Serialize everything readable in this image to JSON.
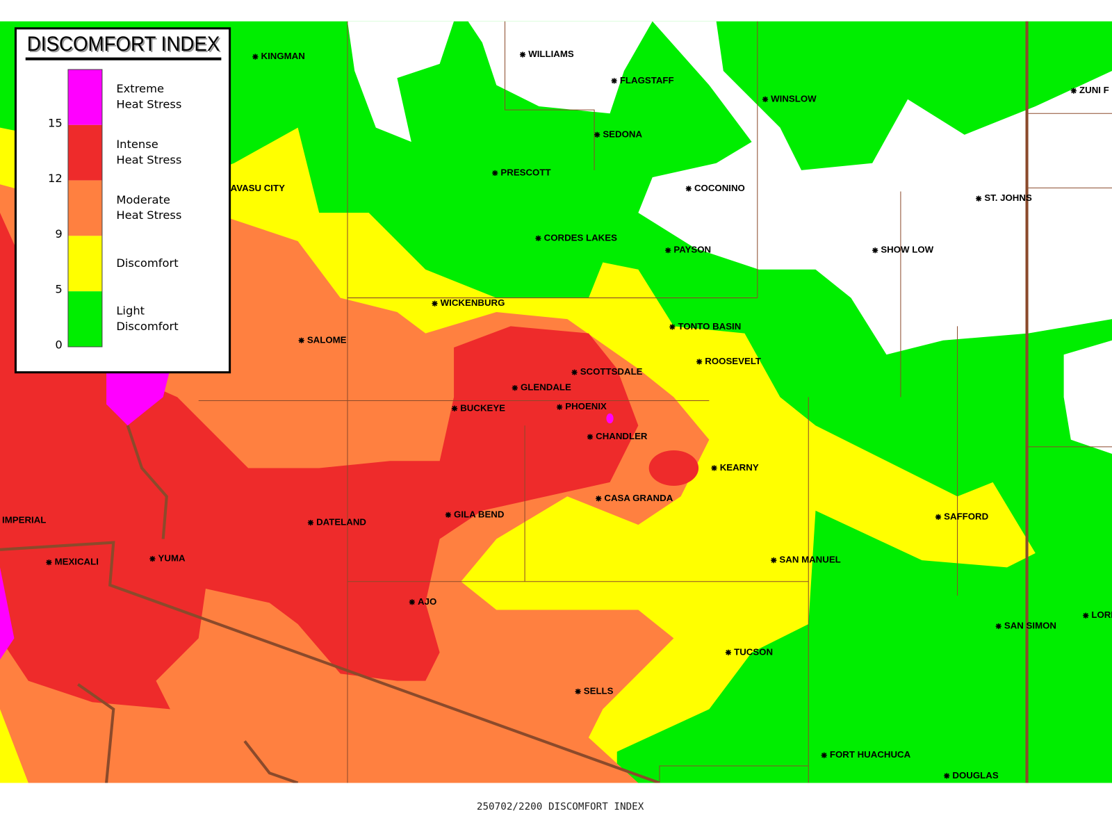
{
  "legend": {
    "title": "DISCOMFORT INDEX",
    "items": [
      {
        "lines": [
          "Extreme",
          "Heat Stress"
        ],
        "color": "#ff00ff"
      },
      {
        "lines": [
          "Intense",
          "Heat Stress"
        ],
        "color": "#ee2b2b"
      },
      {
        "lines": [
          "Moderate",
          "Heat Stress"
        ],
        "color": "#ff8040"
      },
      {
        "lines": [
          "Discomfort"
        ],
        "color": "#ffff00"
      },
      {
        "lines": [
          "Light",
          "Discomfort"
        ],
        "color": "#00ee00"
      }
    ],
    "thresholds": [
      15,
      12,
      9,
      5,
      0
    ]
  },
  "cities": [
    "KINGMAN",
    "WILLIAMS",
    "FLAGSTAFF",
    "WINSLOW",
    "ZUNI F",
    "SEDONA",
    "PRESCOTT",
    "COCONINO",
    "ST. JOHNS",
    "AVASU CITY",
    "CORDES LAKES",
    "PAYSON",
    "SHOW LOW",
    "WICKENBURG",
    "SALOME",
    "TONTO BASIN",
    "ROOSEVELT",
    "SCOTTSDALE",
    "GLENDALE",
    "BUCKEYE",
    "PHOENIX",
    "CHANDLER",
    "KEARNY",
    "CASA GRANDA",
    "SAFFORD",
    "IMPERIAL",
    "GILA BEND",
    "DATELAND",
    "MEXICALI",
    "YUMA",
    "SAN MANUEL",
    "AJO",
    "SAN SIMON",
    "LORI",
    "TUCSON",
    "SELLS",
    "FORT HUACHUCA",
    "DOUGLAS"
  ],
  "footer": "250702/2200 DISCOMFORT INDEX"
}
